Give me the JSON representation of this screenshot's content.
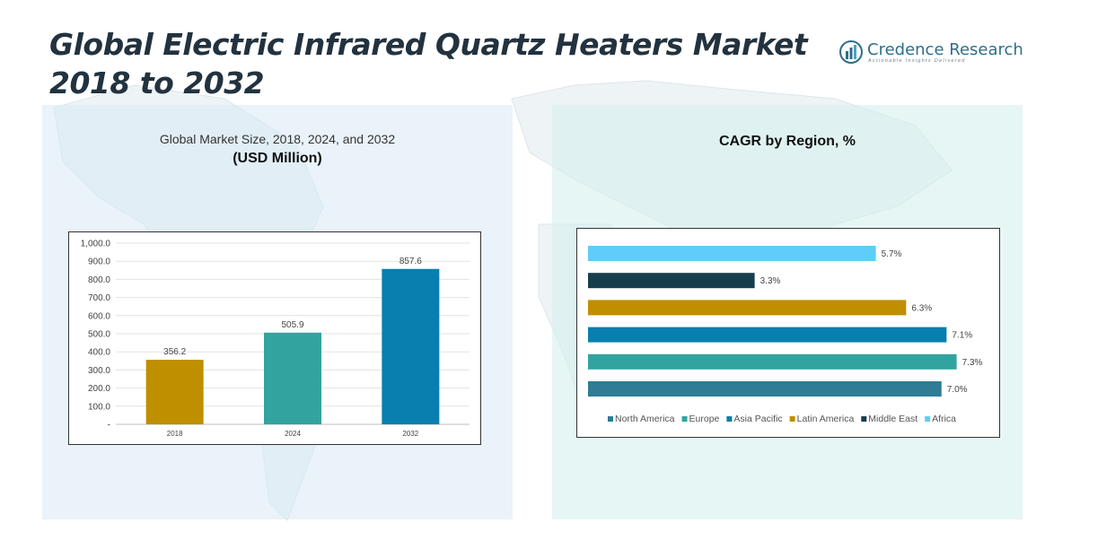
{
  "page": {
    "title_line1": "Global Electric Infrared Quartz Heaters Market",
    "title_line2": "2018 to 2032"
  },
  "logo": {
    "name": "Credence Research",
    "tagline": "Actionable Insights Delivered",
    "icon": "bar-chart-logo-icon"
  },
  "colors": {
    "bar2018": "#bf8f00",
    "bar2024": "#33a3a0",
    "bar2032": "#087fae",
    "north_america": "#2e7c96",
    "europe": "#33a3a0",
    "asia_pacific": "#087fae",
    "latin_america": "#bf8f00",
    "middle_east": "#173e4c",
    "africa": "#5fcdf7"
  },
  "left_panel": {
    "subtitle": "Global Market Size, 2018, 2024, and 2032",
    "unit": "(USD Million)"
  },
  "right_panel": {
    "title": "CAGR by Region, %"
  },
  "chart_data": [
    {
      "type": "bar",
      "title": "Global Market Size, 2018, 2024, and 2032",
      "ylabel": "USD Million",
      "categories": [
        "2018",
        "2024",
        "2032"
      ],
      "values": [
        356.2,
        505.9,
        857.6
      ],
      "value_labels": [
        "356.2",
        "505.9",
        "857.6"
      ],
      "ylim": [
        0,
        1000
      ],
      "yticks": [
        "-",
        "100.0",
        "200.0",
        "300.0",
        "400.0",
        "500.0",
        "600.0",
        "700.0",
        "800.0",
        "900.0",
        "1,000.0"
      ],
      "grid": true
    },
    {
      "type": "bar",
      "orientation": "horizontal",
      "title": "CAGR by Region, %",
      "categories": [
        "North America",
        "Europe",
        "Asia Pacific",
        "Latin America",
        "Middle East",
        "Africa"
      ],
      "values": [
        7.0,
        7.3,
        7.1,
        6.3,
        3.3,
        5.7
      ],
      "value_labels": [
        "7.0%",
        "7.3%",
        "7.1%",
        "6.3%",
        "3.3%",
        "5.7%"
      ],
      "xlim": [
        0,
        8
      ],
      "legend": "bottom"
    }
  ]
}
